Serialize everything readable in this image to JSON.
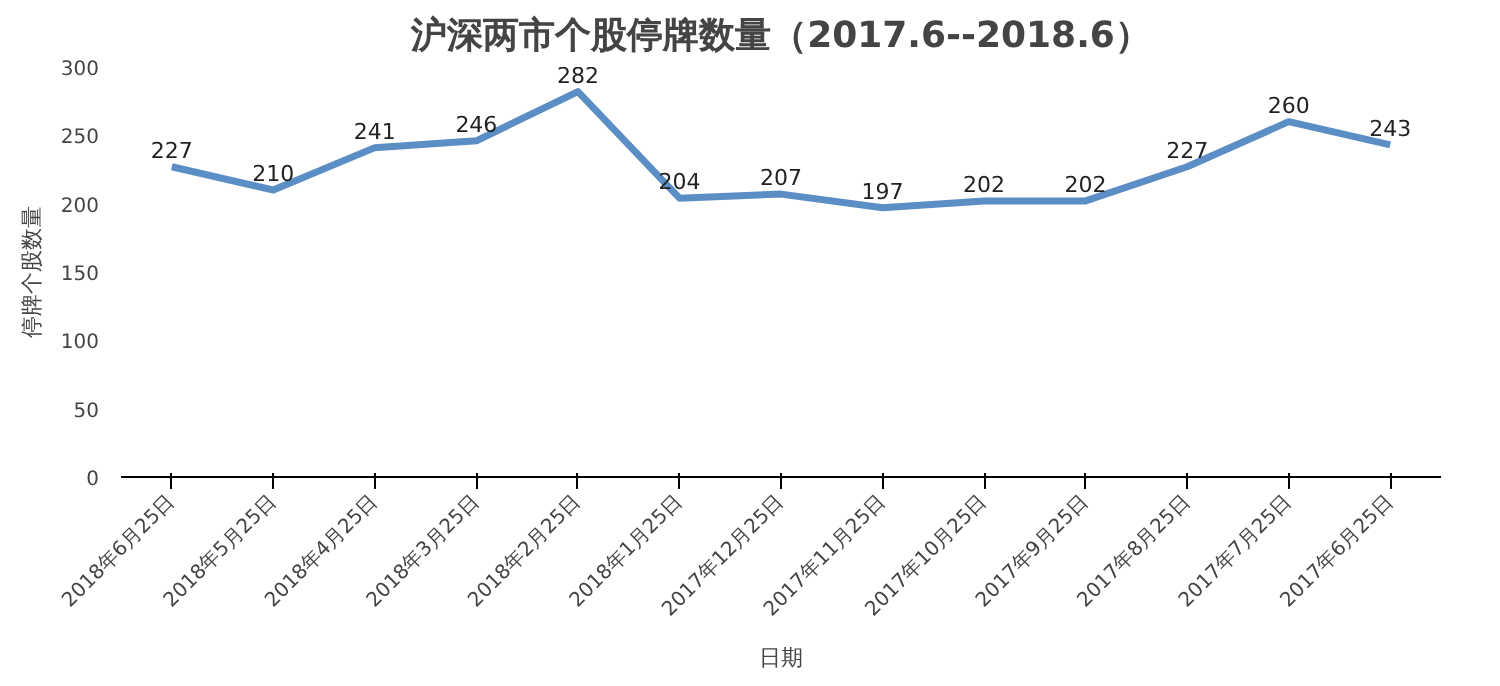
{
  "chart_data": {
    "type": "line",
    "title": "沪深两市个股停牌数量（2017.6--2018.6）",
    "xlabel": "日期",
    "ylabel": "停牌个股数量",
    "categories": [
      "2018年6月25日",
      "2018年5月25日",
      "2018年4月25日",
      "2018年3月25日",
      "2018年2月25日",
      "2018年1月25日",
      "2017年12月25日",
      "2017年11月25日",
      "2017年10月25日",
      "2017年9月25日",
      "2017年8月25日",
      "2017年7月25日",
      "2017年6月25日"
    ],
    "series": [
      {
        "color": "#5b8ec4",
        "values": [
          227,
          210,
          241,
          246,
          282,
          204,
          207,
          197,
          202,
          202,
          227,
          260,
          243
        ]
      }
    ],
    "ylim": [
      0,
      300
    ],
    "yticks": [
      0,
      50,
      100,
      150,
      200,
      250,
      300
    ],
    "grid": false,
    "marker": "none",
    "line_style": "solid",
    "data_labels": true
  }
}
